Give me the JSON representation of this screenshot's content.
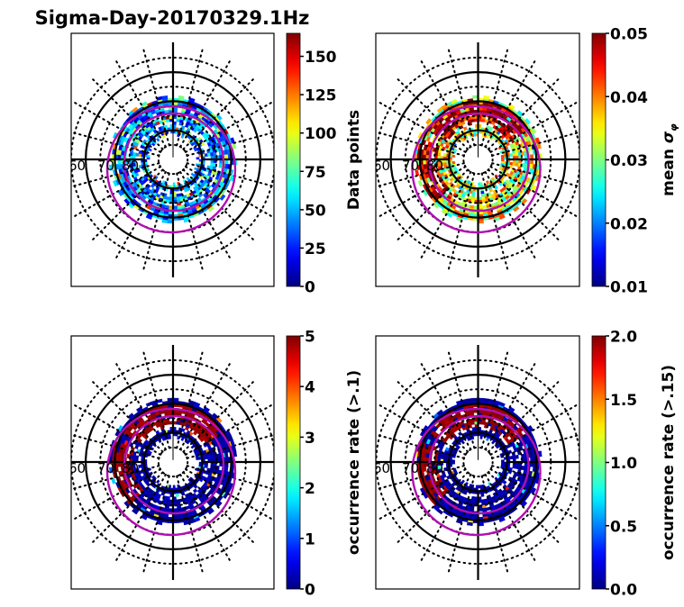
{
  "figure_title": "Sigma-Day-20170329.1Hz",
  "chart_data": [
    {
      "type": "heatmap",
      "projection": "polar",
      "panel": "top-left",
      "title": "",
      "lat_labels": [
        "60",
        "70",
        "80"
      ],
      "lat_rings_solid": [
        60,
        70,
        80
      ],
      "colormap": "jet",
      "colorbar": {
        "label": "Data points",
        "label_sub": "",
        "vmin": 0,
        "vmax": 165,
        "ticks": [
          0,
          25,
          50,
          75,
          100,
          125,
          150
        ],
        "tick_labels": [
          "0",
          "25",
          "50",
          "75",
          "100",
          "125",
          "150"
        ]
      },
      "dominant_value_frac": 0.2,
      "hot_fraction": 0.05,
      "hot_region": "scattered",
      "data_band_colat": [
        8,
        22
      ]
    },
    {
      "type": "heatmap",
      "projection": "polar",
      "panel": "top-right",
      "title": "",
      "lat_labels": [
        "60",
        "70",
        "80"
      ],
      "lat_rings_solid": [
        60,
        70,
        80
      ],
      "colormap": "jet",
      "colorbar": {
        "label": "mean ",
        "label_sub": "σ",
        "label_subscript": "φ",
        "vmin": 0.01,
        "vmax": 0.05,
        "ticks": [
          0.01,
          0.02,
          0.03,
          0.04,
          0.05
        ],
        "tick_labels": [
          "0.01",
          "0.02",
          "0.03",
          "0.04",
          "0.05"
        ]
      },
      "dominant_value_frac": 0.55,
      "hot_fraction": 0.35,
      "hot_region": "noon-dusk",
      "data_band_colat": [
        8,
        22
      ]
    },
    {
      "type": "heatmap",
      "projection": "polar",
      "panel": "bottom-left",
      "title": "",
      "lat_labels": [
        "60",
        "70",
        "80"
      ],
      "lat_rings_solid": [
        60,
        70,
        80
      ],
      "colormap": "jet",
      "colorbar": {
        "label": "occurrence rate (>.1)",
        "label_sub": "",
        "vmin": 0,
        "vmax": 5,
        "ticks": [
          0,
          1,
          2,
          3,
          4,
          5
        ],
        "tick_labels": [
          "0",
          "1",
          "2",
          "3",
          "4",
          "5"
        ]
      },
      "dominant_value_frac": 0.0,
      "hot_fraction": 0.18,
      "hot_region": "noon-dusk",
      "data_band_colat": [
        8,
        22
      ]
    },
    {
      "type": "heatmap",
      "projection": "polar",
      "panel": "bottom-right",
      "title": "",
      "lat_labels": [
        "60",
        "70",
        "80"
      ],
      "lat_rings_solid": [
        60,
        70,
        80
      ],
      "colormap": "jet",
      "colorbar": {
        "label": "occurrence rate (>.15)",
        "label_sub": "",
        "vmin": 0.0,
        "vmax": 2.0,
        "ticks": [
          0.0,
          0.5,
          1.0,
          1.5,
          2.0
        ],
        "tick_labels": [
          "0.0",
          "0.5",
          "1.0",
          "1.5",
          "2.0"
        ]
      },
      "dominant_value_frac": 0.0,
      "hot_fraction": 0.15,
      "hot_region": "noon-dusk",
      "data_band_colat": [
        8,
        22
      ]
    }
  ],
  "auroral_oval": {
    "color": "#b010b0",
    "boundaries": [
      "poleward",
      "equatorward"
    ]
  },
  "colors": {
    "grid": "#000000",
    "oval": "#b010b0"
  }
}
